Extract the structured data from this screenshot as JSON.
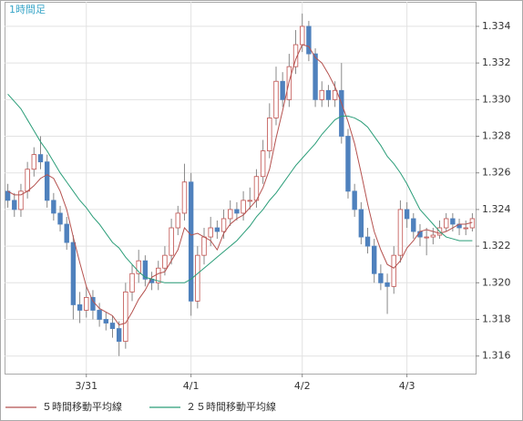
{
  "chart_data": {
    "type": "candlestick",
    "title": "1時間足",
    "title_color": "#3aa6c8",
    "categories": [
      null,
      null,
      null,
      null,
      null,
      null,
      null,
      null,
      null,
      null,
      null,
      null,
      "3/31",
      null,
      null,
      null,
      null,
      null,
      null,
      null,
      null,
      null,
      null,
      null,
      null,
      null,
      null,
      null,
      "4/1",
      null,
      null,
      null,
      null,
      null,
      null,
      null,
      null,
      null,
      null,
      null,
      null,
      null,
      null,
      null,
      null,
      "4/2",
      null,
      null,
      null,
      null,
      null,
      null,
      null,
      null,
      null,
      null,
      null,
      null,
      null,
      null,
      null,
      "4/3",
      null,
      null,
      null,
      null,
      null,
      null,
      null,
      null,
      null,
      null
    ],
    "open": [
      1.325,
      1.3245,
      1.324,
      1.325,
      1.3262,
      1.327,
      1.3266,
      1.3245,
      1.3238,
      1.3232,
      1.3222,
      1.3188,
      1.3185,
      1.3192,
      1.3185,
      1.318,
      1.3178,
      1.3175,
      1.3168,
      1.3195,
      1.3205,
      1.3212,
      1.3202,
      1.32,
      1.3208,
      1.3215,
      1.323,
      1.3238,
      1.3255,
      1.319,
      1.3215,
      1.3225,
      1.323,
      1.3228,
      1.3235,
      1.324,
      1.3238,
      1.3245,
      1.3245,
      1.3258,
      1.3272,
      1.329,
      1.331,
      1.33,
      1.3318,
      1.333,
      1.334,
      1.3325,
      1.33,
      1.3305,
      1.33,
      1.3305,
      1.328,
      1.325,
      1.324,
      1.3225,
      1.322,
      1.3205,
      1.32,
      1.3198,
      1.3215,
      1.324,
      1.3235,
      1.3228,
      1.3225,
      1.3225,
      1.3226,
      1.323,
      1.3235,
      1.3232,
      1.323,
      1.323
    ],
    "high": [
      1.3254,
      1.3249,
      1.3254,
      1.3266,
      1.3274,
      1.328,
      1.327,
      1.3249,
      1.3242,
      1.3236,
      1.3226,
      1.3195,
      1.3198,
      1.3196,
      1.3189,
      1.3184,
      1.3182,
      1.3179,
      1.32,
      1.321,
      1.3218,
      1.3215,
      1.3206,
      1.3212,
      1.322,
      1.3235,
      1.3242,
      1.3265,
      1.326,
      1.322,
      1.323,
      1.3236,
      1.3234,
      1.324,
      1.3245,
      1.3244,
      1.325,
      1.3252,
      1.3262,
      1.3278,
      1.3298,
      1.3318,
      1.3315,
      1.3325,
      1.3338,
      1.3347,
      1.3343,
      1.3328,
      1.331,
      1.3308,
      1.331,
      1.332,
      1.3284,
      1.3254,
      1.3244,
      1.323,
      1.3224,
      1.321,
      1.3205,
      1.322,
      1.3245,
      1.3244,
      1.3238,
      1.3232,
      1.323,
      1.323,
      1.3234,
      1.3238,
      1.3238,
      1.3235,
      1.3234,
      1.3238
    ],
    "low": [
      1.3241,
      1.3236,
      1.3236,
      1.3246,
      1.3258,
      1.3262,
      1.3241,
      1.3234,
      1.3228,
      1.3218,
      1.318,
      1.3178,
      1.3181,
      1.318,
      1.3176,
      1.3174,
      1.317,
      1.316,
      1.3164,
      1.319,
      1.32,
      1.3198,
      1.3196,
      1.3196,
      1.3204,
      1.321,
      1.3226,
      1.3234,
      1.3182,
      1.3186,
      1.321,
      1.322,
      1.3224,
      1.3224,
      1.3231,
      1.3234,
      1.3234,
      1.324,
      1.3241,
      1.3254,
      1.3268,
      1.3286,
      1.3296,
      1.3296,
      1.3314,
      1.3326,
      1.3321,
      1.3296,
      1.3296,
      1.3296,
      1.3296,
      1.3276,
      1.3246,
      1.3236,
      1.3221,
      1.3216,
      1.32,
      1.3196,
      1.3183,
      1.3194,
      1.3211,
      1.323,
      1.3224,
      1.322,
      1.3215,
      1.3221,
      1.3224,
      1.3228,
      1.3228,
      1.3226,
      1.3226,
      1.3228
    ],
    "close": [
      1.3245,
      1.324,
      1.325,
      1.3262,
      1.327,
      1.3266,
      1.3245,
      1.3238,
      1.3232,
      1.3222,
      1.3188,
      1.3185,
      1.3192,
      1.3185,
      1.318,
      1.3178,
      1.3175,
      1.3168,
      1.3195,
      1.3205,
      1.3212,
      1.3202,
      1.32,
      1.3208,
      1.3215,
      1.323,
      1.3238,
      1.3255,
      1.319,
      1.3215,
      1.3225,
      1.323,
      1.3228,
      1.3235,
      1.324,
      1.3238,
      1.3245,
      1.3245,
      1.3258,
      1.3272,
      1.329,
      1.331,
      1.33,
      1.3318,
      1.333,
      1.334,
      1.3325,
      1.33,
      1.3305,
      1.33,
      1.3305,
      1.328,
      1.325,
      1.324,
      1.3225,
      1.322,
      1.3205,
      1.32,
      1.3198,
      1.3215,
      1.324,
      1.3235,
      1.3228,
      1.3225,
      1.3225,
      1.3226,
      1.323,
      1.3235,
      1.3232,
      1.323,
      1.323,
      1.3235
    ],
    "up_color": "#c0504d",
    "down_color": "#4f81bd",
    "series": [
      {
        "name": "５時間移動平均線",
        "color": "#b5524f",
        "values": [
          1.325,
          1.3248,
          1.3248,
          1.325,
          1.3253,
          1.3257,
          1.3259,
          1.3257,
          1.325,
          1.324,
          1.3225,
          1.3211,
          1.3198,
          1.319,
          1.3186,
          1.3184,
          1.3182,
          1.3177,
          1.3178,
          1.3184,
          1.3191,
          1.3196,
          1.3203,
          1.3205,
          1.3206,
          1.3212,
          1.3218,
          1.323,
          1.3226,
          1.3227,
          1.3225,
          1.3223,
          1.3218,
          1.3227,
          1.3232,
          1.3235,
          1.3237,
          1.3241,
          1.3245,
          1.3252,
          1.3262,
          1.3279,
          1.3294,
          1.331,
          1.3322,
          1.333,
          1.3329,
          1.3323,
          1.332,
          1.3314,
          1.3307,
          1.3298,
          1.3288,
          1.3276,
          1.326,
          1.3243,
          1.3228,
          1.3218,
          1.321,
          1.3208,
          1.3212,
          1.3219,
          1.3223,
          1.3228,
          1.3229,
          1.3228,
          1.3227,
          1.3228,
          1.323,
          1.3232,
          1.3232,
          1.3233
        ]
      },
      {
        "name": "２５時間移動平均線",
        "color": "#2a9d78",
        "values": [
          1.3303,
          1.3299,
          1.3295,
          1.3289,
          1.3283,
          1.3277,
          1.3272,
          1.3266,
          1.326,
          1.3255,
          1.325,
          1.3245,
          1.3241,
          1.3236,
          1.3232,
          1.3227,
          1.3222,
          1.3219,
          1.3214,
          1.321,
          1.3206,
          1.3203,
          1.3202,
          1.3201,
          1.32,
          1.32,
          1.32,
          1.32,
          1.3202,
          1.3205,
          1.3208,
          1.3211,
          1.3214,
          1.3217,
          1.322,
          1.3223,
          1.3227,
          1.3231,
          1.3236,
          1.324,
          1.3245,
          1.3249,
          1.3254,
          1.3259,
          1.3264,
          1.3268,
          1.3272,
          1.3276,
          1.3281,
          1.3285,
          1.3289,
          1.3291,
          1.3291,
          1.329,
          1.3288,
          1.3285,
          1.328,
          1.3275,
          1.3269,
          1.3265,
          1.326,
          1.3254,
          1.3247,
          1.324,
          1.3236,
          1.3232,
          1.3228,
          1.3225,
          1.3224,
          1.3223,
          1.3223,
          1.3223
        ]
      }
    ],
    "ylim": [
      1.31504,
      1.33534
    ],
    "yticks": [
      1.316,
      1.318,
      {
        "value": 1.32,
        "label": "1.320"
      },
      1.322,
      1.324,
      1.326,
      1.328,
      {
        "value": 1.33,
        "label": "1.330"
      },
      1.332,
      1.334
    ],
    "y_axis_side": "right",
    "grid": true,
    "legend": "bottom-left"
  }
}
